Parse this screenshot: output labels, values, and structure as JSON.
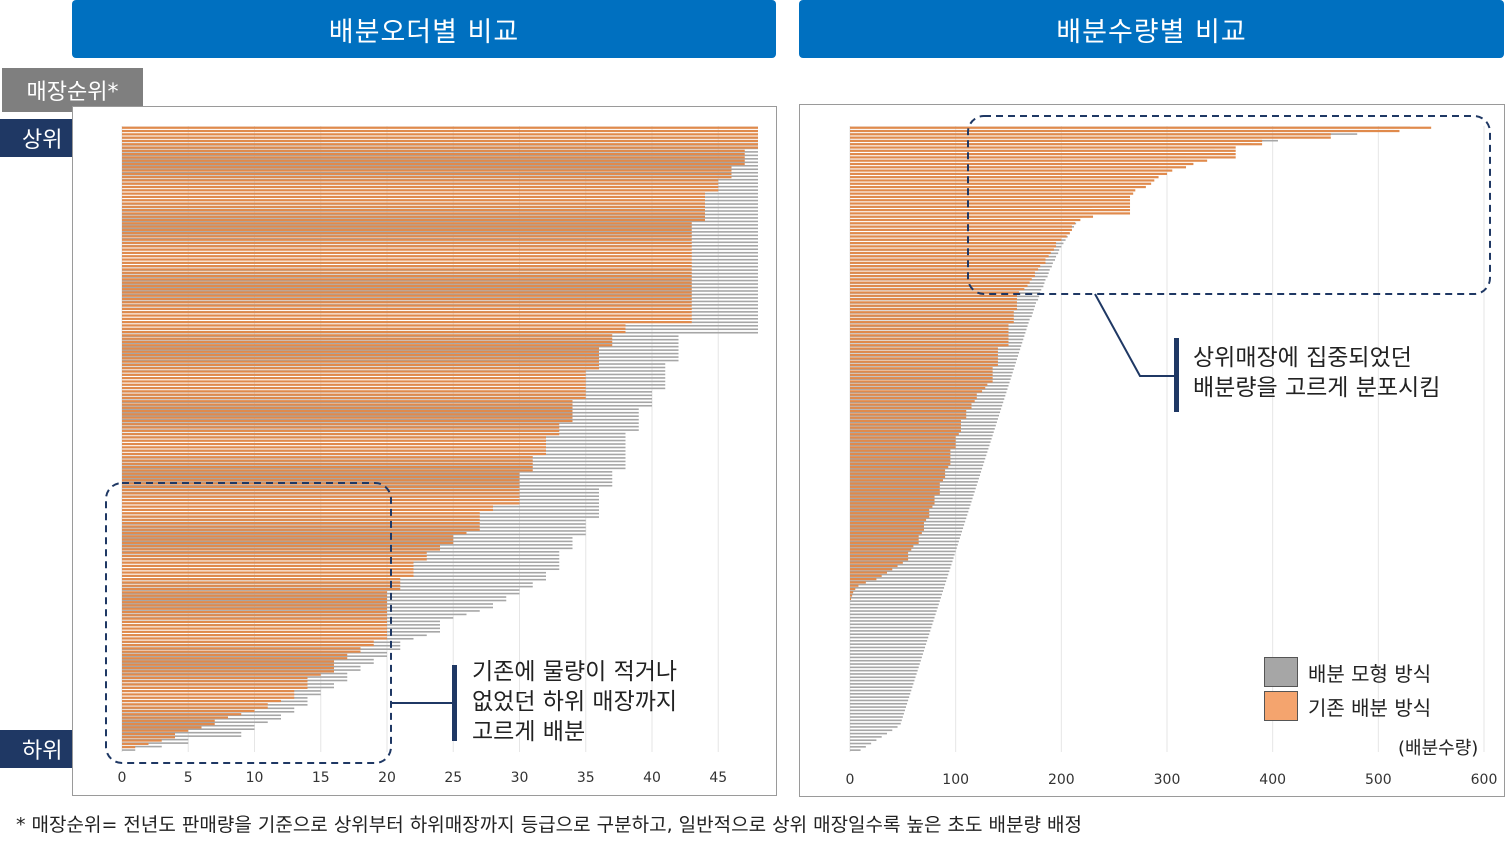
{
  "headers": {
    "left": "배분오더별 비교",
    "right": "배분수량별 비교"
  },
  "rank_label": "매장순위*",
  "rank_top": "상위",
  "rank_bottom": "하위",
  "annotations": {
    "left": [
      "기존에 물량이 적거나",
      "없었던 하위 매장까지",
      "고르게 배분"
    ],
    "right": [
      "상위매장에 집중되었던",
      "배분량을 고르게 분포시킴"
    ]
  },
  "legend": {
    "model": "배분 모형 방식",
    "legacy": "기존 배분 방식"
  },
  "unit_label": "(배분수량)",
  "footnote": "* 매장순위= 전년도 판매량을 기준으로 상위부터 하위매장까지 등급으로 구분하고, 일반적으로 상위 매장일수록 높은 초도 배분량 배정",
  "colors": {
    "header": "#0070c0",
    "tag": "#1f3864",
    "rank_box": "#7f7f7f",
    "model": "#a6a6a6",
    "legacy": "#f4a46e",
    "legacy_line": "#e08a4c",
    "annotation": "#1f3864"
  },
  "chart_data": [
    {
      "type": "bar",
      "orientation": "horizontal",
      "title": "배분오더별 비교",
      "xlim": [
        0,
        48
      ],
      "xticks": [
        0,
        5,
        10,
        15,
        20,
        25,
        30,
        35,
        40,
        45
      ],
      "series": [
        {
          "name": "배분 모형 방식",
          "values": [
            48,
            48,
            48,
            48,
            48,
            48,
            48,
            48,
            48,
            48,
            48,
            48,
            48,
            48,
            48,
            48,
            48,
            48,
            48,
            48,
            48,
            48,
            48,
            48,
            48,
            48,
            48,
            48,
            48,
            48,
            48,
            48,
            48,
            48,
            48,
            48,
            48,
            48,
            48,
            48,
            48,
            48,
            48,
            48,
            48,
            48,
            48,
            48,
            48,
            48,
            48,
            48,
            48,
            48,
            48,
            48,
            48,
            48,
            48,
            48,
            42,
            42,
            42,
            42,
            42,
            42,
            42,
            42,
            41,
            41,
            41,
            41,
            41,
            41,
            41,
            41,
            40,
            40,
            40,
            40,
            40,
            39,
            39,
            39,
            39,
            39,
            39,
            39,
            38,
            38,
            38,
            38,
            38,
            38,
            38,
            38,
            38,
            38,
            38,
            37,
            37,
            37,
            37,
            37,
            36,
            36,
            36,
            36,
            36,
            36,
            36,
            36,
            36,
            35,
            35,
            35,
            35,
            35,
            34,
            34,
            34,
            34,
            33,
            33,
            33,
            33,
            33,
            33,
            32,
            32,
            32,
            31,
            31,
            30,
            30,
            29,
            29,
            28,
            28,
            27,
            26,
            25,
            24,
            24,
            24,
            24,
            23,
            22,
            21,
            21,
            21,
            20,
            20,
            19,
            19,
            18,
            18,
            17,
            17,
            17,
            16,
            16,
            15,
            15,
            14,
            14,
            14,
            13,
            13,
            12,
            12,
            11,
            10,
            10,
            9,
            9,
            5,
            5,
            3,
            1
          ]
        },
        {
          "name": "기존 배분 방식",
          "values": [
            48,
            48,
            48,
            48,
            48,
            48,
            48,
            47,
            47,
            47,
            47,
            47,
            46,
            46,
            46,
            46,
            45,
            45,
            45,
            45,
            44,
            44,
            44,
            44,
            44,
            44,
            44,
            44,
            44,
            43,
            43,
            43,
            43,
            43,
            43,
            43,
            43,
            43,
            43,
            43,
            43,
            43,
            43,
            43,
            43,
            43,
            43,
            43,
            43,
            43,
            43,
            43,
            43,
            43,
            43,
            43,
            43,
            43,
            43,
            43,
            38,
            38,
            38,
            37,
            37,
            37,
            37,
            36,
            36,
            36,
            36,
            36,
            36,
            36,
            35,
            35,
            35,
            35,
            35,
            35,
            35,
            35,
            35,
            34,
            34,
            34,
            34,
            34,
            34,
            34,
            33,
            33,
            33,
            33,
            32,
            32,
            32,
            32,
            32,
            32,
            31,
            31,
            31,
            31,
            31,
            30,
            30,
            30,
            30,
            30,
            30,
            30,
            30,
            30,
            30,
            28,
            28,
            27,
            27,
            27,
            27,
            27,
            27,
            26,
            25,
            25,
            25,
            24,
            24,
            23,
            23,
            23,
            22,
            22,
            22,
            22,
            22,
            21,
            21,
            21,
            21,
            20,
            20,
            20,
            20,
            20,
            20,
            20,
            20,
            20,
            20,
            20,
            20,
            20,
            20,
            20,
            19,
            19,
            18,
            18,
            17,
            17,
            16,
            16,
            16,
            16,
            15,
            14,
            14,
            14,
            14,
            13,
            13,
            13,
            12,
            11,
            11,
            10,
            9,
            8,
            7,
            7,
            6,
            5,
            4,
            4,
            3,
            2,
            1,
            0
          ]
        }
      ]
    },
    {
      "type": "bar",
      "orientation": "horizontal",
      "title": "배분수량별 비교",
      "xlabel": "(배분수량)",
      "xlim": [
        0,
        600
      ],
      "xticks": [
        0,
        100,
        200,
        300,
        400,
        500,
        600
      ],
      "series": [
        {
          "name": "배분 모형 방식",
          "values": [
            530,
            515,
            480,
            440,
            405,
            380,
            360,
            345,
            330,
            318,
            310,
            300,
            292,
            285,
            278,
            270,
            265,
            258,
            252,
            248,
            244,
            240,
            236,
            232,
            229,
            226,
            223,
            220,
            217,
            214,
            212,
            210,
            208,
            206,
            204,
            202,
            200,
            198,
            197,
            195,
            194,
            192,
            191,
            189,
            188,
            187,
            185,
            184,
            183,
            181,
            180,
            179,
            178,
            176,
            175,
            174,
            173,
            172,
            170,
            169,
            168,
            167,
            166,
            165,
            164,
            163,
            162,
            161,
            160,
            159,
            158,
            157,
            156,
            155,
            154,
            153,
            152,
            151,
            150,
            149,
            148,
            147,
            146,
            145,
            144,
            143,
            142,
            141,
            140,
            139,
            138,
            137,
            136,
            135,
            134,
            133,
            132,
            131,
            130,
            129,
            128,
            127,
            126,
            125,
            124,
            123,
            122,
            121,
            120,
            119,
            118,
            117,
            116,
            115,
            114,
            113,
            112,
            111,
            110,
            109,
            108,
            107,
            106,
            105,
            104,
            103,
            102,
            101,
            100,
            99,
            98,
            97,
            96,
            95,
            94,
            93,
            92,
            91,
            90,
            89,
            88,
            87,
            86,
            85,
            84,
            83,
            82,
            81,
            80,
            79,
            78,
            77,
            76,
            75,
            74,
            73,
            72,
            71,
            70,
            69,
            68,
            67,
            66,
            65,
            64,
            63,
            62,
            61,
            60,
            59,
            58,
            57,
            56,
            55,
            54,
            53,
            52,
            51,
            50,
            49,
            48,
            45,
            40,
            35,
            30,
            25,
            20,
            15,
            10
          ]
        },
        {
          "name": "기존 배분 방식",
          "values": [
            550,
            520,
            455,
            455,
            390,
            390,
            365,
            365,
            365,
            365,
            338,
            325,
            318,
            305,
            300,
            292,
            288,
            285,
            280,
            270,
            268,
            265,
            265,
            265,
            265,
            265,
            265,
            230,
            218,
            213,
            210,
            210,
            208,
            205,
            200,
            195,
            195,
            193,
            190,
            188,
            185,
            185,
            180,
            178,
            175,
            175,
            172,
            170,
            168,
            165,
            160,
            158,
            158,
            158,
            158,
            158,
            155,
            155,
            155,
            155,
            150,
            150,
            150,
            150,
            150,
            150,
            150,
            140,
            140,
            140,
            140,
            140,
            140,
            135,
            135,
            135,
            135,
            135,
            130,
            128,
            125,
            120,
            120,
            118,
            115,
            115,
            110,
            110,
            110,
            105,
            105,
            105,
            105,
            103,
            100,
            100,
            100,
            100,
            95,
            95,
            95,
            95,
            95,
            93,
            90,
            90,
            90,
            88,
            85,
            85,
            85,
            85,
            80,
            80,
            80,
            78,
            75,
            75,
            75,
            72,
            70,
            70,
            70,
            68,
            65,
            65,
            65,
            60,
            58,
            55,
            55,
            55,
            50,
            45,
            40,
            35,
            30,
            25,
            15,
            8,
            5,
            3,
            2,
            1,
            0,
            0,
            0,
            0,
            0,
            0,
            0,
            0,
            0,
            0,
            0,
            0,
            0,
            0,
            0,
            0,
            0,
            0,
            0,
            0,
            0,
            0,
            0,
            0,
            0,
            0,
            0,
            0,
            0,
            0,
            0,
            0,
            0,
            0,
            0,
            0,
            0,
            0,
            0,
            0,
            0,
            0,
            0,
            0,
            0,
            0
          ]
        }
      ]
    }
  ]
}
